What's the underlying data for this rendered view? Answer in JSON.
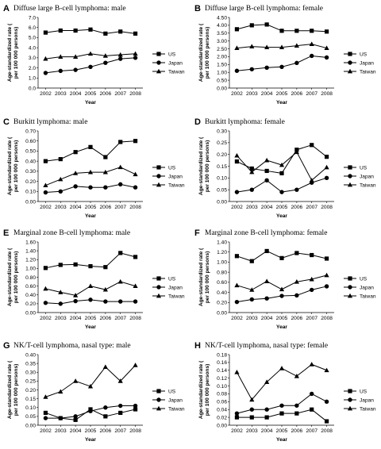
{
  "chart_data": [
    {
      "type": "line",
      "panel": "A",
      "title": "Diffuse large B-cell lymphoma: male",
      "xlabel": "Year",
      "ylabel": "Age-standardized rate (per 100 000 persons)",
      "categories": [
        "2002",
        "2003",
        "2004",
        "2005",
        "2006",
        "2007",
        "2008"
      ],
      "ylim": [
        0,
        7
      ],
      "ystep": 1,
      "ydecimals": 1,
      "series": [
        {
          "name": "US",
          "marker": "square",
          "values": [
            5.5,
            5.7,
            5.7,
            5.8,
            5.4,
            5.6,
            5.4
          ]
        },
        {
          "name": "Japan",
          "marker": "circle",
          "values": [
            1.5,
            1.7,
            1.8,
            2.1,
            2.5,
            2.9,
            3.0
          ]
        },
        {
          "name": "Taiwan",
          "marker": "triangle",
          "values": [
            2.9,
            3.1,
            3.1,
            3.4,
            3.2,
            3.3,
            3.4
          ]
        }
      ]
    },
    {
      "type": "line",
      "panel": "B",
      "title": "Diffuse large B-cell lymphoma: female",
      "xlabel": "Year",
      "ylabel": "Age-standardized rate (per 100 000 persons)",
      "categories": [
        "2002",
        "2003",
        "2004",
        "2005",
        "2006",
        "2007",
        "2008"
      ],
      "ylim": [
        0,
        4.5
      ],
      "ystep": 0.5,
      "ydecimals": 2,
      "series": [
        {
          "name": "US",
          "marker": "square",
          "values": [
            3.75,
            4.0,
            4.05,
            3.65,
            3.65,
            3.65,
            3.6
          ]
        },
        {
          "name": "Japan",
          "marker": "circle",
          "values": [
            1.1,
            1.2,
            1.3,
            1.35,
            1.6,
            2.05,
            1.95
          ]
        },
        {
          "name": "Taiwan",
          "marker": "triangle",
          "values": [
            2.55,
            2.65,
            2.6,
            2.6,
            2.7,
            2.8,
            2.55
          ]
        }
      ]
    },
    {
      "type": "line",
      "panel": "C",
      "title": "Burkitt lymphoma: male",
      "xlabel": "Year",
      "ylabel": "Age-standardized rate (per 100 000 persons)",
      "categories": [
        "2002",
        "2003",
        "2004",
        "2005",
        "2006",
        "2007",
        "2008"
      ],
      "ylim": [
        0,
        0.7
      ],
      "ystep": 0.1,
      "ydecimals": 2,
      "series": [
        {
          "name": "US",
          "marker": "square",
          "values": [
            0.4,
            0.42,
            0.49,
            0.54,
            0.44,
            0.59,
            0.6
          ]
        },
        {
          "name": "Japan",
          "marker": "circle",
          "values": [
            0.09,
            0.1,
            0.15,
            0.14,
            0.14,
            0.17,
            0.14
          ]
        },
        {
          "name": "Taiwan",
          "marker": "triangle",
          "values": [
            0.16,
            0.22,
            0.28,
            0.29,
            0.29,
            0.34,
            0.27
          ]
        }
      ]
    },
    {
      "type": "line",
      "panel": "D",
      "title": "Burkitt lymphoma: female",
      "xlabel": "Year",
      "ylabel": "Age-standardized rate (per 100 000 persons)",
      "categories": [
        "2002",
        "2003",
        "2004",
        "2005",
        "2006",
        "2007",
        "2008"
      ],
      "ylim": [
        0,
        0.3
      ],
      "ystep": 0.05,
      "ydecimals": 2,
      "series": [
        {
          "name": "US",
          "marker": "square",
          "values": [
            0.17,
            0.14,
            0.13,
            0.12,
            0.22,
            0.24,
            0.19
          ]
        },
        {
          "name": "Japan",
          "marker": "circle",
          "values": [
            0.04,
            0.05,
            0.09,
            0.04,
            0.05,
            0.08,
            0.1
          ]
        },
        {
          "name": "Taiwan",
          "marker": "triangle",
          "values": [
            0.195,
            0.125,
            0.175,
            0.155,
            0.21,
            0.09,
            0.145
          ]
        }
      ]
    },
    {
      "type": "line",
      "panel": "E",
      "title": "Marginal zone B-cell lymphoma: male",
      "xlabel": "Year",
      "ylabel": "Age-standardized rate (per 100 000 persons)",
      "categories": [
        "2002",
        "2003",
        "2004",
        "2005",
        "2006",
        "2007",
        "2008"
      ],
      "ylim": [
        0,
        1.6
      ],
      "ystep": 0.2,
      "ydecimals": 2,
      "series": [
        {
          "name": "US",
          "marker": "square",
          "values": [
            1.01,
            1.08,
            1.09,
            1.05,
            1.03,
            1.35,
            1.26
          ]
        },
        {
          "name": "Japan",
          "marker": "circle",
          "values": [
            0.22,
            0.2,
            0.26,
            0.29,
            0.25,
            0.25,
            0.25
          ]
        },
        {
          "name": "Taiwan",
          "marker": "triangle",
          "values": [
            0.54,
            0.46,
            0.39,
            0.6,
            0.52,
            0.7,
            0.6
          ]
        }
      ]
    },
    {
      "type": "line",
      "panel": "F",
      "title": "Marginal zone B-cell lymphoma: female",
      "xlabel": "Year",
      "ylabel": "Age-standardized rate (per 100 000 persons)",
      "categories": [
        "2002",
        "2003",
        "2004",
        "2005",
        "2006",
        "2007",
        "2008"
      ],
      "ylim": [
        0,
        1.4
      ],
      "ystep": 0.2,
      "ydecimals": 2,
      "series": [
        {
          "name": "US",
          "marker": "square",
          "values": [
            1.12,
            1.02,
            1.22,
            1.08,
            1.18,
            1.14,
            1.07
          ]
        },
        {
          "name": "Japan",
          "marker": "circle",
          "values": [
            0.21,
            0.26,
            0.28,
            0.33,
            0.34,
            0.45,
            0.52
          ]
        },
        {
          "name": "Taiwan",
          "marker": "triangle",
          "values": [
            0.54,
            0.45,
            0.62,
            0.46,
            0.61,
            0.66,
            0.74
          ]
        }
      ]
    },
    {
      "type": "line",
      "panel": "G",
      "title": "NK/T-cell lymphoma, nasal type: male",
      "xlabel": "Year",
      "ylabel": "Age-standardized rate (per 100 000 persons)",
      "categories": [
        "2002",
        "2003",
        "2004",
        "2005",
        "2006",
        "2007",
        "2008"
      ],
      "ylim": [
        0,
        0.4
      ],
      "ystep": 0.05,
      "ydecimals": 2,
      "series": [
        {
          "name": "US",
          "marker": "square",
          "values": [
            0.07,
            0.04,
            0.03,
            0.09,
            0.05,
            0.07,
            0.09
          ]
        },
        {
          "name": "Japan",
          "marker": "circle",
          "values": [
            0.04,
            0.04,
            0.05,
            0.08,
            0.1,
            0.11,
            0.11
          ]
        },
        {
          "name": "Taiwan",
          "marker": "triangle",
          "values": [
            0.16,
            0.19,
            0.25,
            0.22,
            0.33,
            0.25,
            0.34
          ]
        }
      ]
    },
    {
      "type": "line",
      "panel": "H",
      "title": "NK/T-cell lymphoma, nasal type: female",
      "xlabel": "Year",
      "ylabel": "Age-standardized rate (per 100 000 persons)",
      "categories": [
        "2002",
        "2003",
        "2004",
        "2005",
        "2006",
        "2007",
        "2008"
      ],
      "ylim": [
        0,
        0.18
      ],
      "ystep": 0.02,
      "ydecimals": 2,
      "series": [
        {
          "name": "US",
          "marker": "square",
          "values": [
            0.02,
            0.02,
            0.02,
            0.03,
            0.03,
            0.04,
            0.01
          ]
        },
        {
          "name": "Japan",
          "marker": "circle",
          "values": [
            0.03,
            0.04,
            0.04,
            0.05,
            0.05,
            0.08,
            0.06
          ]
        },
        {
          "name": "Taiwan",
          "marker": "triangle",
          "values": [
            0.135,
            0.065,
            0.11,
            0.145,
            0.125,
            0.155,
            0.14
          ]
        }
      ]
    }
  ]
}
